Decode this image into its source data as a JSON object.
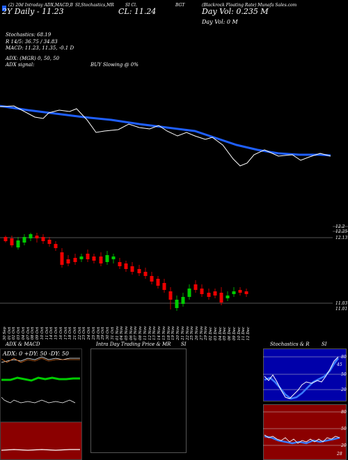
{
  "header": {
    "legend_icon": "blue-square-icon",
    "line1": "(2) 20d Intraday ADX,MACD,B",
    "line1b": "SI,Stochastics,MR",
    "line1c": "SI Cl.",
    "line1d": "BGT",
    "line1e": "(Blackrock Floating Rate) Munafa Sales.com",
    "line2": "2Y Daily - 11.23",
    "cl_label": "CL: 11.24",
    "day_vol": "Day Vol: 0.235 M",
    "day_vol2": "Day Vol: 0  M"
  },
  "indicators": {
    "stochastics": "Stochastics: 68.19",
    "r_line": "R              14/5: 36.75 / 34.83",
    "macd": "MACD: 11.23,  11.35, -0.1 D",
    "adx": "ADX:                     (MGR) 0,  50,  50",
    "adx_signal": "ADX  signal:",
    "buy_slowing": "BUY Slowing @ 0%"
  },
  "price_axis": {
    "upper_labels": [
      "12.2",
      "12.25"
    ],
    "mid_label": "12.13",
    "low_labels": [
      "11.03",
      "11.01"
    ]
  },
  "dates": [
    "30 Sep",
    "01 Oct",
    "02 Oct",
    "03 Oct",
    "04 Oct",
    "07 Oct",
    "08 Oct",
    "09 Oct",
    "10 Oct",
    "11 Oct",
    "14 Oct",
    "15 Oct",
    "16 Oct",
    "17 Oct",
    "18 Oct",
    "21 Oct",
    "22 Oct",
    "23 Oct",
    "24 Oct",
    "25 Oct",
    "28 Oct",
    "29 Oct",
    "30 Oct",
    "31 Oct",
    "01 Nov",
    "04 Nov",
    "05 Nov",
    "06 Nov",
    "07 Nov",
    "08 Nov",
    "11 Nov",
    "12 Nov",
    "13 Nov",
    "14 Nov",
    "15 Nov",
    "18 Nov",
    "19 Nov",
    "20 Nov",
    "21 Nov",
    "22 Nov",
    "25 Nov",
    "26 Nov",
    "27 Nov",
    "29 Nov",
    "02 Dec",
    "03 Dec",
    "04 Dec",
    "05 Dec",
    "06 Dec",
    "09 Dec",
    "10 Dec",
    "11 Dec",
    "12 Dec"
  ],
  "panels": {
    "adx_title": "ADX  & MACD",
    "adx_values": "ADX: 0  +DY: 50  -DY: 50",
    "intraday_title": "Intra  Day Trading Price  & MR",
    "intraday_si": "SI",
    "stoch_title": "Stochastics & R",
    "stoch_si": "SI",
    "stoch_levels": [
      "80",
      "50",
      "20"
    ],
    "stoch_value": "45",
    "mrsi_levels": [
      "80",
      "50",
      "20"
    ],
    "mrsi_value": "28"
  },
  "colors": {
    "up": "#00cc00",
    "down": "#ee0000",
    "ma": "#1f5fff",
    "price": "#ffffff",
    "panel_red": "#8b0000",
    "panel_blue": "#0000aa"
  }
}
